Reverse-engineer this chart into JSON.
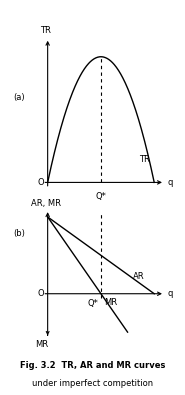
{
  "fig_width": 1.85,
  "fig_height": 3.95,
  "dpi": 100,
  "background_color": "#ffffff",
  "panel_a_label": "(a)",
  "panel_b_label": "(b)",
  "tr_label": "TR",
  "ar_label": "AR",
  "mr_label": "MR",
  "ar_mr_label": "AR, MR",
  "q_star_label": "Q*",
  "q_label": "q",
  "o_label": "O",
  "tr_y_label": "TR",
  "fig_caption_line1": "Fig. 3.2  TR, AR and MR curves",
  "fig_caption_line2": "under imperfect competition",
  "q_star": 0.5,
  "line_color": "#000000",
  "dashed_color": "#000000",
  "text_color": "#000000",
  "fontsize_labels": 6,
  "fontsize_caption_bold": 6,
  "fontsize_caption": 6,
  "fontsize_panel": 6
}
